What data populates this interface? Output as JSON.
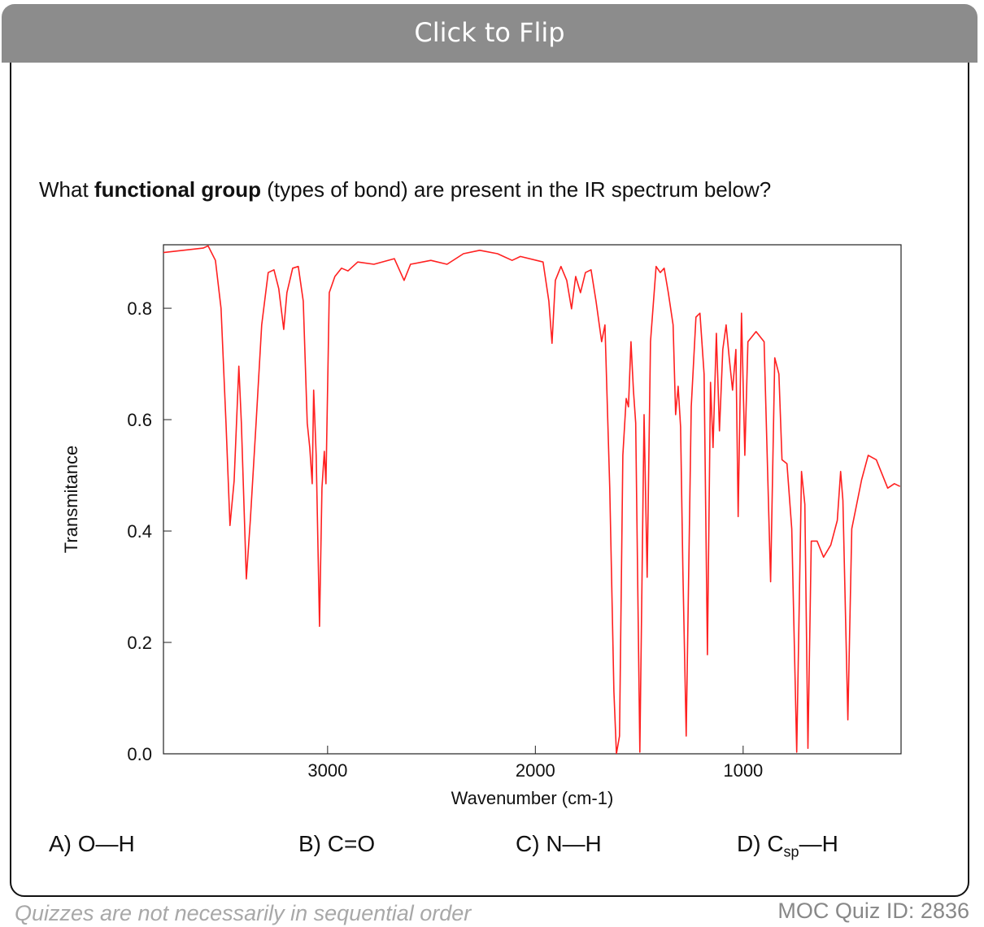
{
  "header": {
    "title": "Click to Flip"
  },
  "question": {
    "before": "What ",
    "bold": "functional group",
    "after": " (types of bond) are present in the IR spectrum below?"
  },
  "chart_data": {
    "type": "line",
    "xlabel": "Wavenumber (cm-1)",
    "ylabel": "Transmitance",
    "xlim": [
      3790,
      240
    ],
    "ylim": [
      0,
      0.914
    ],
    "xticks": [
      3000,
      2000,
      1000
    ],
    "yticks": [
      {
        "value": 0,
        "label": "0.0"
      },
      0.2,
      0.4,
      0.6,
      0.8
    ],
    "color": "#ff2020",
    "x": [
      3791,
      3599,
      3575,
      3540,
      3513,
      3489,
      3470,
      3450,
      3427,
      3415,
      3391,
      3372,
      3344,
      3317,
      3286,
      3258,
      3235,
      3211,
      3196,
      3168,
      3141,
      3117,
      3098,
      3086,
      3074,
      3067,
      3055,
      3039,
      3027,
      3016,
      3008,
      2992,
      2965,
      2933,
      2902,
      2855,
      2777,
      2679,
      2632,
      2601,
      2503,
      2425,
      2346,
      2268,
      2182,
      2112,
      2072,
      1963,
      1935,
      1920,
      1904,
      1877,
      1849,
      1826,
      1806,
      1783,
      1759,
      1732,
      1708,
      1681,
      1665,
      1642,
      1622,
      1610,
      1595,
      1579,
      1563,
      1552,
      1540,
      1528,
      1517,
      1497,
      1477,
      1462,
      1446,
      1419,
      1399,
      1380,
      1360,
      1337,
      1325,
      1313,
      1301,
      1290,
      1274,
      1250,
      1227,
      1208,
      1188,
      1172,
      1157,
      1145,
      1129,
      1114,
      1098,
      1082,
      1067,
      1051,
      1035,
      1024,
      1008,
      992,
      977,
      938,
      899,
      868,
      848,
      828,
      813,
      789,
      766,
      742,
      719,
      703,
      688,
      672,
      644,
      613,
      578,
      547,
      531,
      520,
      496,
      477,
      430,
      398,
      359,
      304,
      272,
      245
    ],
    "values": [
      0.9,
      0.908,
      0.912,
      0.886,
      0.8,
      0.594,
      0.41,
      0.49,
      0.696,
      0.594,
      0.314,
      0.419,
      0.594,
      0.77,
      0.864,
      0.869,
      0.835,
      0.762,
      0.828,
      0.872,
      0.875,
      0.813,
      0.594,
      0.55,
      0.485,
      0.653,
      0.536,
      0.229,
      0.477,
      0.543,
      0.485,
      0.828,
      0.857,
      0.872,
      0.867,
      0.883,
      0.879,
      0.889,
      0.85,
      0.879,
      0.886,
      0.879,
      0.898,
      0.904,
      0.898,
      0.886,
      0.893,
      0.883,
      0.813,
      0.737,
      0.85,
      0.875,
      0.85,
      0.799,
      0.857,
      0.828,
      0.864,
      0.869,
      0.813,
      0.74,
      0.77,
      0.477,
      0.112,
      0,
      0.032,
      0.536,
      0.638,
      0.623,
      0.74,
      0.653,
      0.594,
      0.003,
      0.609,
      0.317,
      0.74,
      0.875,
      0.864,
      0.872,
      0.828,
      0.77,
      0.609,
      0.66,
      0.587,
      0.331,
      0.032,
      0.623,
      0.784,
      0.791,
      0.682,
      0.178,
      0.667,
      0.55,
      0.755,
      0.58,
      0.726,
      0.77,
      0.711,
      0.653,
      0.726,
      0.426,
      0.791,
      0.536,
      0.74,
      0.758,
      0.74,
      0.309,
      0.711,
      0.682,
      0.528,
      0.521,
      0.404,
      0.003,
      0.507,
      0.448,
      0.01,
      0.382,
      0.382,
      0.353,
      0.375,
      0.419,
      0.507,
      0.455,
      0.061,
      0.404,
      0.492,
      0.536,
      0.528,
      0.477,
      0.485,
      0.48
    ]
  },
  "options": [
    {
      "text": "A) O—H"
    },
    {
      "text": "B) C=O"
    },
    {
      "text": "C) N—H"
    },
    {
      "text": "D) C",
      "sub": "sp",
      "rest": "—H"
    }
  ],
  "footer": {
    "note": "Quizzes are not necessarily in sequential order",
    "quiz_id": "MOC Quiz ID: 2836"
  }
}
